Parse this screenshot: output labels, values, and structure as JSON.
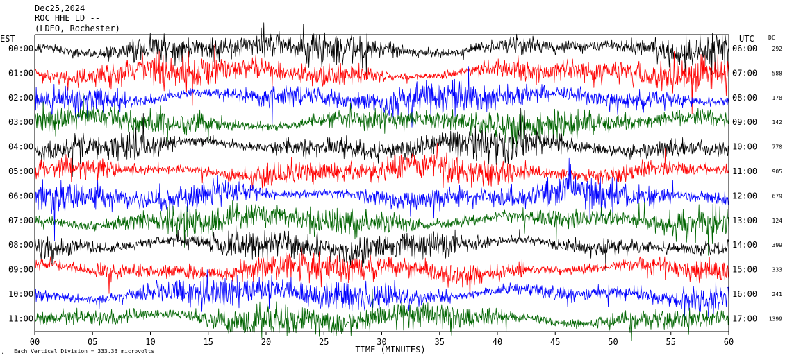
{
  "header": {
    "line1": "Dec25,2024",
    "line2": "ROC HHE LD --",
    "line3": "(LDEO, Rochester)"
  },
  "labels": {
    "left_tz": "EST",
    "right_tz": "UTC",
    "dc": "DC",
    "x_axis_title": "TIME (MINUTES)",
    "scale_note": "Each Vertical Division =  333.33 microvolts"
  },
  "chart_data": {
    "type": "line",
    "title": "ROC HHE LD --",
    "xlabel": "TIME (MINUTES)",
    "xlim": [
      0,
      60
    ],
    "x_ticks": [
      "00",
      "05",
      "10",
      "15",
      "20",
      "25",
      "30",
      "35",
      "40",
      "45",
      "50",
      "55",
      "60"
    ],
    "grid": false,
    "trace_colors": [
      "#000000",
      "#ff0000",
      "#0000ff",
      "#006400"
    ],
    "rows": [
      {
        "est": "00:00",
        "utc": "06:00",
        "dc": "292"
      },
      {
        "est": "01:00",
        "utc": "07:00",
        "dc": "588"
      },
      {
        "est": "02:00",
        "utc": "08:00",
        "dc": "178"
      },
      {
        "est": "03:00",
        "utc": "09:00",
        "dc": "142"
      },
      {
        "est": "04:00",
        "utc": "10:00",
        "dc": "770"
      },
      {
        "est": "05:00",
        "utc": "11:00",
        "dc": "905"
      },
      {
        "est": "06:00",
        "utc": "12:00",
        "dc": "679"
      },
      {
        "est": "07:00",
        "utc": "13:00",
        "dc": "124"
      },
      {
        "est": "08:00",
        "utc": "14:00",
        "dc": "399"
      },
      {
        "est": "09:00",
        "utc": "15:00",
        "dc": "333"
      },
      {
        "est": "10:00",
        "utc": "16:00",
        "dc": "241"
      },
      {
        "est": "11:00",
        "utc": "17:00",
        "dc": "1399"
      }
    ]
  }
}
